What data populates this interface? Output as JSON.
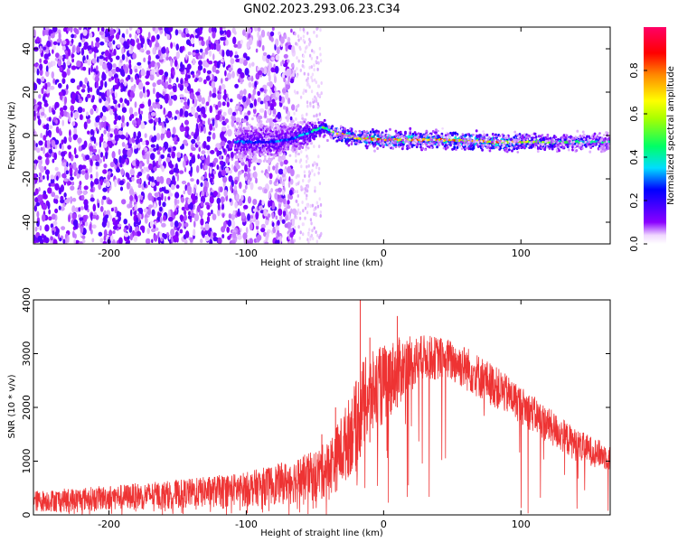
{
  "title": "GN02.2023.293.06.23.C34",
  "chart_data": [
    {
      "type": "heatmap",
      "xlabel": "Height of straight line (km)",
      "ylabel": "Frequency (Hz)",
      "xlim": [
        -255,
        165
      ],
      "ylim": [
        -50,
        50
      ],
      "xticks": [
        -200,
        -100,
        0,
        100
      ],
      "yticks": [
        -40,
        -20,
        0,
        20,
        40
      ],
      "colorbar": {
        "label": "Normalized spectral amplitude",
        "range": [
          0,
          1
        ],
        "ticks": [
          0.0,
          0.2,
          0.4,
          0.6,
          0.8
        ],
        "tick_labels": [
          "0.0",
          "0.2",
          "0.4",
          "0.6",
          "0.8"
        ],
        "colormap": "gist_rainbow-like (magenta-purple-blue-cyan-green-yellow-orange-red), white at 0"
      },
      "features": {
        "noise_region_x": [
          -255,
          -65
        ],
        "sparse_noise_x": [
          -65,
          -45
        ],
        "signal_ridge": [
          {
            "x": -105,
            "y": -3,
            "width": 5,
            "amp": 0.35
          },
          {
            "x": -85,
            "y": -3,
            "width": 6,
            "amp": 0.35
          },
          {
            "x": -70,
            "y": -2,
            "width": 5,
            "amp": 0.35
          },
          {
            "x": -55,
            "y": 1,
            "width": 4,
            "amp": 0.45
          },
          {
            "x": -45,
            "y": 4,
            "width": 3,
            "amp": 0.55
          },
          {
            "x": -35,
            "y": 1,
            "width": 3,
            "amp": 0.75
          },
          {
            "x": -20,
            "y": -1,
            "width": 3,
            "amp": 0.85
          },
          {
            "x": 0,
            "y": -2,
            "width": 3,
            "amp": 0.95
          },
          {
            "x": 40,
            "y": -2,
            "width": 3,
            "amp": 0.85
          },
          {
            "x": 80,
            "y": -3,
            "width": 3,
            "amp": 0.95
          },
          {
            "x": 120,
            "y": -3,
            "width": 3,
            "amp": 0.6
          },
          {
            "x": 165,
            "y": -3,
            "width": 3,
            "amp": 0.5
          }
        ]
      }
    },
    {
      "type": "line",
      "xlabel": "Height of straight line (km)",
      "ylabel": "SNR (10 * v/v)",
      "xlim": [
        -255,
        165
      ],
      "ylim": [
        0,
        4000
      ],
      "xticks": [
        -200,
        -100,
        0,
        100
      ],
      "yticks": [
        0,
        1000,
        2000,
        3000,
        4000
      ],
      "color": "#ee3333",
      "envelope": {
        "x": [
          -255,
          -200,
          -150,
          -100,
          -70,
          -50,
          -40,
          -30,
          -20,
          -15,
          -5,
          10,
          30,
          45,
          60,
          80,
          100,
          120,
          140,
          165
        ],
        "low": [
          50,
          80,
          120,
          150,
          200,
          250,
          350,
          500,
          900,
          1200,
          1500,
          2000,
          2500,
          2500,
          2300,
          2000,
          1700,
          1300,
          1000,
          800
        ],
        "high": [
          450,
          550,
          650,
          800,
          1000,
          1200,
          1400,
          1900,
          2500,
          2900,
          3100,
          3300,
          3350,
          3300,
          3150,
          2800,
          2400,
          2000,
          1600,
          1300
        ]
      },
      "spikes": [
        {
          "x": -45,
          "y": 1500
        },
        {
          "x": -35,
          "y": 2000
        },
        {
          "x": -17,
          "y": 4200
        },
        {
          "x": -10,
          "y": 3300
        },
        {
          "x": 10,
          "y": 3700
        }
      ]
    }
  ]
}
